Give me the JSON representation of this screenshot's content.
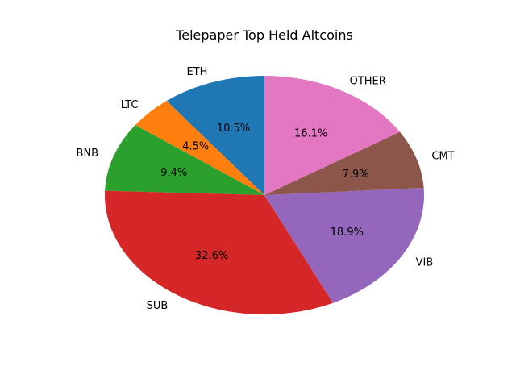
{
  "chart_data": {
    "type": "pie",
    "title": "Telepaper Top Held Altcoins",
    "slices": [
      {
        "label": "ETH",
        "value": 10.5,
        "pct_label": "10.5%",
        "color": "#1f77b4"
      },
      {
        "label": "LTC",
        "value": 4.5,
        "pct_label": "4.5%",
        "color": "#ff7f0e"
      },
      {
        "label": "BNB",
        "value": 9.4,
        "pct_label": "9.4%",
        "color": "#2ca02c"
      },
      {
        "label": "SUB",
        "value": 32.6,
        "pct_label": "32.6%",
        "color": "#d62728"
      },
      {
        "label": "VIB",
        "value": 18.9,
        "pct_label": "18.9%",
        "color": "#9467bd"
      },
      {
        "label": "CMT",
        "value": 7.9,
        "pct_label": "7.9%",
        "color": "#8c564b"
      },
      {
        "label": "OTHER",
        "value": 16.1,
        "pct_label": "16.1%",
        "color": "#e377c2"
      }
    ],
    "start_angle_deg": 90,
    "direction": "counterclockwise"
  }
}
